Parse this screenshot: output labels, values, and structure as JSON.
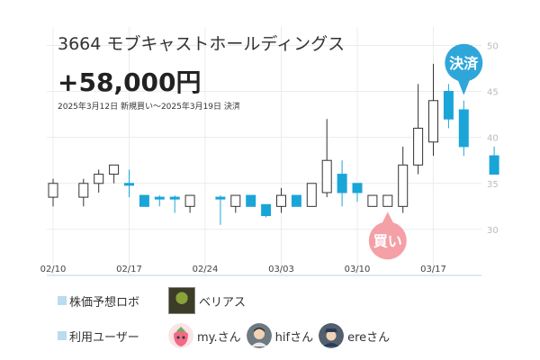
{
  "header": {
    "title": "3664 モブキャストホールディングス",
    "profit": "+58,000円",
    "period": "2025年3月12日 新規買い〜2025年3月19日 決済"
  },
  "badges": {
    "buy": "買い",
    "settle": "決済"
  },
  "colors": {
    "up_candle_fill": "#ffffff",
    "down_candle_fill": "#1aa5d8",
    "candle_outline": "#333333",
    "buy_badge": "#f4a0a6",
    "settle_badge": "#2fa6da",
    "legend_mark": "#b9dcef"
  },
  "chart_data": {
    "type": "candlestick",
    "title": "",
    "xlabel": "",
    "ylabel": "",
    "ylim": [
      25,
      52
    ],
    "yticks": [
      30,
      35,
      40,
      45,
      50
    ],
    "x_tick_labels": [
      "02/10",
      "02/17",
      "02/24",
      "03/03",
      "03/10",
      "03/17"
    ],
    "grid": true,
    "candles": [
      {
        "date": "02/10",
        "open": 33.5,
        "high": 35.5,
        "low": 32.5,
        "close": 35.0
      },
      {
        "date": "02/12",
        "open": 33.5,
        "high": 35.5,
        "low": 32.5,
        "close": 35.0
      },
      {
        "date": "02/13",
        "open": 35.0,
        "high": 36.5,
        "low": 34.0,
        "close": 36.0
      },
      {
        "date": "02/14",
        "open": 36.0,
        "high": 37.0,
        "low": 35.0,
        "close": 37.0
      },
      {
        "date": "02/17",
        "open": 35.0,
        "high": 36.5,
        "low": 33.5,
        "close": 34.8
      },
      {
        "date": "02/18",
        "open": 33.7,
        "high": 33.7,
        "low": 32.5,
        "close": 32.5
      },
      {
        "date": "02/19",
        "open": 33.5,
        "high": 33.7,
        "low": 32.5,
        "close": 33.3
      },
      {
        "date": "02/20",
        "open": 33.5,
        "high": 33.7,
        "low": 31.8,
        "close": 33.3
      },
      {
        "date": "02/21",
        "open": 32.5,
        "high": 33.7,
        "low": 31.8,
        "close": 33.7
      },
      {
        "date": "02/25",
        "open": 33.5,
        "high": 33.7,
        "low": 30.5,
        "close": 33.3
      },
      {
        "date": "02/26",
        "open": 32.5,
        "high": 33.7,
        "low": 31.8,
        "close": 33.7
      },
      {
        "date": "02/27",
        "open": 33.7,
        "high": 33.7,
        "low": 32.5,
        "close": 32.5
      },
      {
        "date": "02/28",
        "open": 32.7,
        "high": 32.7,
        "low": 31.3,
        "close": 31.5
      },
      {
        "date": "03/03",
        "open": 32.5,
        "high": 34.5,
        "low": 31.8,
        "close": 33.7
      },
      {
        "date": "03/04",
        "open": 33.7,
        "high": 33.7,
        "low": 32.5,
        "close": 32.5
      },
      {
        "date": "03/05",
        "open": 32.5,
        "high": 35.0,
        "low": 32.5,
        "close": 35.0
      },
      {
        "date": "03/06",
        "open": 34.0,
        "high": 42.0,
        "low": 33.5,
        "close": 37.5
      },
      {
        "date": "03/07",
        "open": 36.0,
        "high": 37.5,
        "low": 32.5,
        "close": 34.0
      },
      {
        "date": "03/10",
        "open": 35.0,
        "high": 35.0,
        "low": 33.0,
        "close": 34.0
      },
      {
        "date": "03/11",
        "open": 32.5,
        "high": 33.7,
        "low": 32.5,
        "close": 33.7
      },
      {
        "date": "03/12",
        "open": 32.5,
        "high": 33.7,
        "low": 32.5,
        "close": 33.7
      },
      {
        "date": "03/13",
        "open": 32.5,
        "high": 39.0,
        "low": 31.8,
        "close": 37.0
      },
      {
        "date": "03/14",
        "open": 37.0,
        "high": 45.8,
        "low": 36.0,
        "close": 41.0
      },
      {
        "date": "03/17",
        "open": 39.5,
        "high": 48.0,
        "low": 38.0,
        "close": 44.0
      },
      {
        "date": "03/18",
        "open": 45.0,
        "high": 45.8,
        "low": 41.0,
        "close": 42.0
      },
      {
        "date": "03/19",
        "open": 43.0,
        "high": 44.0,
        "low": 38.0,
        "close": 39.0
      },
      {
        "date": "03/21",
        "open": 38.0,
        "high": 39.0,
        "low": 36.0,
        "close": 36.0
      }
    ],
    "markers": [
      {
        "label": "買い",
        "date": "03/12",
        "price": 32.5
      },
      {
        "label": "決済",
        "date": "03/19",
        "price": 44.0
      }
    ]
  },
  "legend": {
    "robot_label": "株価予想ロボ",
    "robot_name": "ベリアス",
    "users_label": "利用ユーザー",
    "users": [
      {
        "name": "my.さん",
        "icon": "strawberry-avatar-icon"
      },
      {
        "name": "hifさん",
        "icon": "man-avatar-icon"
      },
      {
        "name": "ereさん",
        "icon": "officer-avatar-icon"
      }
    ]
  }
}
